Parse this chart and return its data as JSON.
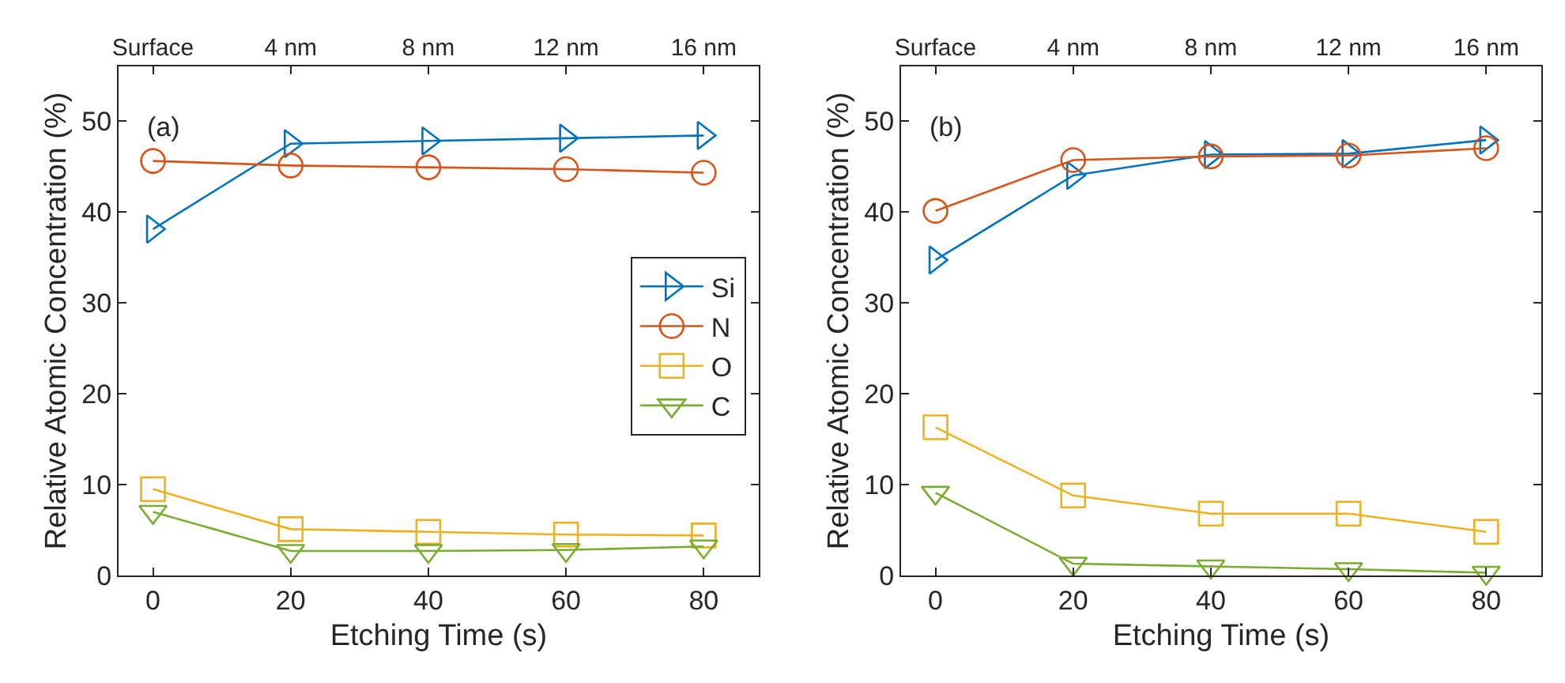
{
  "chart_data": [
    {
      "type": "line",
      "title": null,
      "annotations": [
        "(a)"
      ],
      "xlabel": "Etching Time (s)",
      "ylabel": "Relative Atomic Concentration (%)",
      "x": [
        0,
        20,
        40,
        60,
        80
      ],
      "xlim": [
        -5,
        88
      ],
      "xticks": [
        0,
        20,
        40,
        60,
        80
      ],
      "x2lim": [
        -1,
        17.6
      ],
      "x2ticks": [
        {
          "value": 0,
          "label": "Surface"
        },
        {
          "value": 4,
          "label": "4 nm"
        },
        {
          "value": 8,
          "label": "8 nm"
        },
        {
          "value": 12,
          "label": "12 nm"
        },
        {
          "value": 16,
          "label": "16 nm"
        }
      ],
      "ylim": [
        0,
        56
      ],
      "yticks": [
        0,
        10,
        20,
        30,
        40,
        50
      ],
      "grid": false,
      "legend": "right",
      "series": [
        {
          "name": "Si",
          "color": "#0072bd",
          "marker": "triangle-right",
          "values": [
            38.1,
            47.5,
            47.8,
            48.1,
            48.4
          ]
        },
        {
          "name": "N",
          "color": "#d95319",
          "marker": "circle",
          "values": [
            45.6,
            45.1,
            44.9,
            44.7,
            44.3
          ]
        },
        {
          "name": "O",
          "color": "#edb120",
          "marker": "square",
          "values": [
            9.5,
            5.1,
            4.8,
            4.5,
            4.4
          ]
        },
        {
          "name": "C",
          "color": "#77ac30",
          "marker": "triangle-down",
          "values": [
            7.0,
            2.7,
            2.7,
            2.8,
            3.2
          ]
        }
      ]
    },
    {
      "type": "line",
      "title": null,
      "annotations": [
        "(b)"
      ],
      "xlabel": "Etching Time (s)",
      "ylabel": "Relative Atomic Concentration (%)",
      "x": [
        0,
        20,
        40,
        60,
        80
      ],
      "xlim": [
        -5,
        88
      ],
      "xticks": [
        0,
        20,
        40,
        60,
        80
      ],
      "x2lim": [
        -1,
        17.6
      ],
      "x2ticks": [
        {
          "value": 0,
          "label": "Surface"
        },
        {
          "value": 4,
          "label": "4 nm"
        },
        {
          "value": 8,
          "label": "8 nm"
        },
        {
          "value": 12,
          "label": "12 nm"
        },
        {
          "value": 16,
          "label": "16 nm"
        }
      ],
      "ylim": [
        0,
        56
      ],
      "yticks": [
        0,
        10,
        20,
        30,
        40,
        50
      ],
      "grid": false,
      "legend": false,
      "series": [
        {
          "color": "#0072bd",
          "marker": "triangle-right",
          "values": [
            34.7,
            44.0,
            46.3,
            46.4,
            47.9
          ]
        },
        {
          "color": "#d95319",
          "marker": "circle",
          "values": [
            40.1,
            45.7,
            46.1,
            46.2,
            47.0
          ]
        },
        {
          "color": "#edb120",
          "marker": "square",
          "values": [
            16.3,
            8.8,
            6.8,
            6.8,
            4.8
          ]
        },
        {
          "color": "#77ac30",
          "marker": "triangle-down",
          "values": [
            9.1,
            1.3,
            1.0,
            0.7,
            0.3
          ]
        }
      ]
    }
  ]
}
